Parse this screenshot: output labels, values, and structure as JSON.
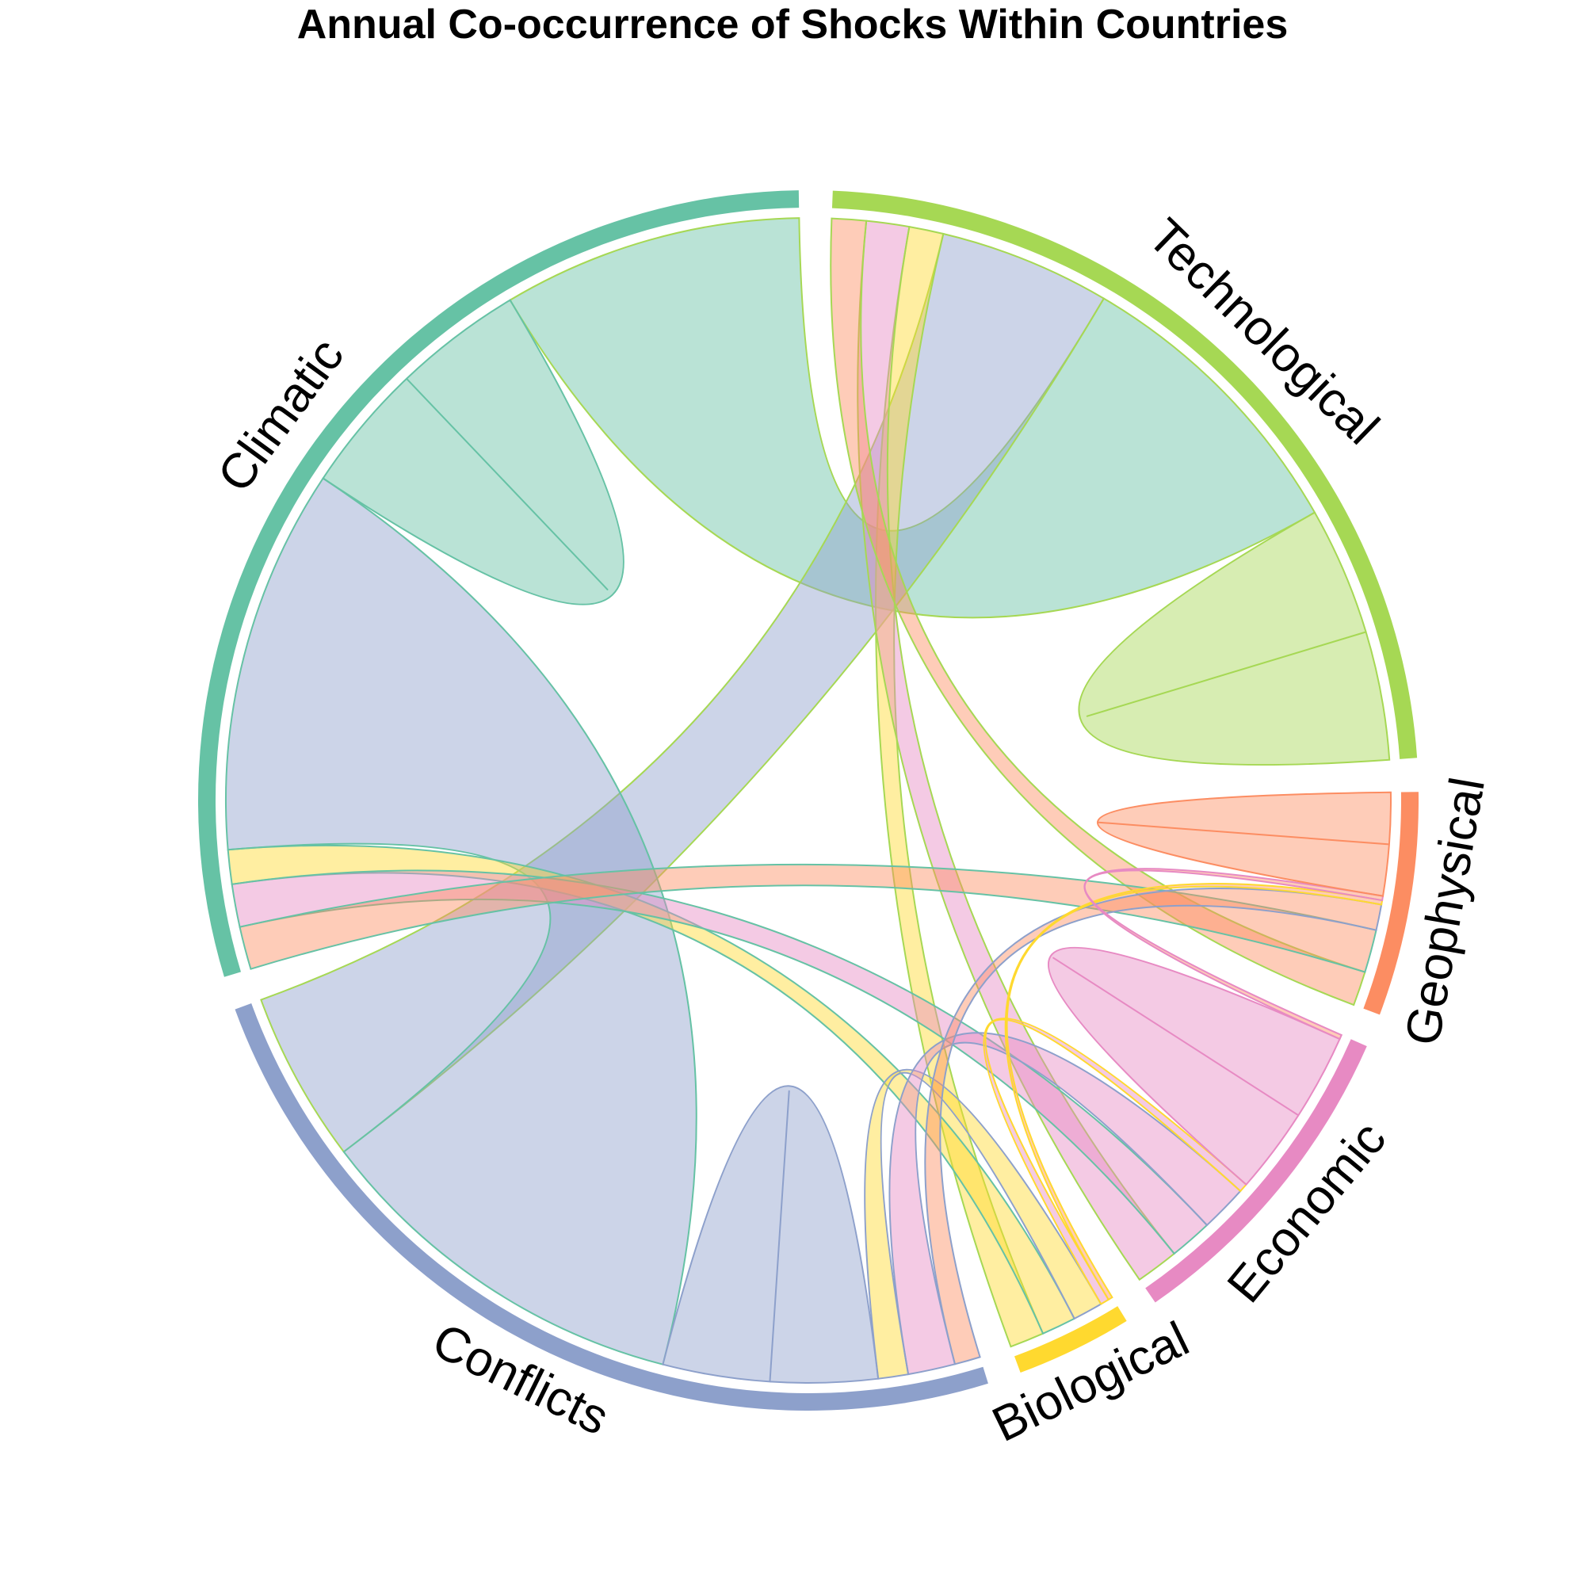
{
  "title": "Annual Co-occurrence of Shocks Within Countries",
  "chart_data": {
    "type": "chord",
    "title": "Annual Co-occurrence of Shocks Within Countries",
    "sectors": [
      {
        "name": "Technological",
        "color": "#a6d854"
      },
      {
        "name": "Climatic",
        "color": "#66c2a5"
      },
      {
        "name": "Conflicts",
        "color": "#8da0cb"
      },
      {
        "name": "Biological",
        "color": "#ffd92f"
      },
      {
        "name": "Economic",
        "color": "#e78ac3"
      },
      {
        "name": "Geophysical",
        "color": "#fc8d62"
      }
    ],
    "links": [
      {
        "from": "Technological",
        "to": "Technological",
        "value": 30
      },
      {
        "from": "Technological",
        "to": "Climatic",
        "value": 70
      },
      {
        "from": "Technological",
        "to": "Conflicts",
        "value": 40
      },
      {
        "from": "Technological",
        "to": "Biological",
        "value": 8
      },
      {
        "from": "Technological",
        "to": "Economic",
        "value": 10
      },
      {
        "from": "Technological",
        "to": "Geophysical",
        "value": 8
      },
      {
        "from": "Climatic",
        "to": "Climatic",
        "value": 30
      },
      {
        "from": "Climatic",
        "to": "Conflicts",
        "value": 90
      },
      {
        "from": "Climatic",
        "to": "Biological",
        "value": 8
      },
      {
        "from": "Climatic",
        "to": "Economic",
        "value": 10
      },
      {
        "from": "Climatic",
        "to": "Geophysical",
        "value": 10
      },
      {
        "from": "Conflicts",
        "to": "Conflicts",
        "value": 25
      },
      {
        "from": "Conflicts",
        "to": "Biological",
        "value": 7
      },
      {
        "from": "Conflicts",
        "to": "Economic",
        "value": 11
      },
      {
        "from": "Conflicts",
        "to": "Geophysical",
        "value": 6
      },
      {
        "from": "Biological",
        "to": "Economic",
        "value": 2
      },
      {
        "from": "Biological",
        "to": "Geophysical",
        "value": 1
      },
      {
        "from": "Economic",
        "to": "Economic",
        "value": 20
      },
      {
        "from": "Economic",
        "to": "Geophysical",
        "value": 1
      },
      {
        "from": "Geophysical",
        "to": "Geophysical",
        "value": 12
      }
    ]
  }
}
